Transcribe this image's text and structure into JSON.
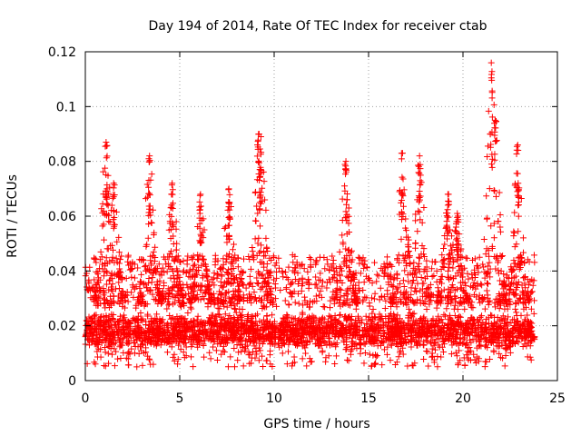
{
  "chart_data": {
    "type": "scatter",
    "title": "Day 194 of 2014, Rate Of TEC Index for receiver ctab",
    "xlabel": "GPS time / hours",
    "ylabel": "ROTI / TECUs",
    "xlim": [
      0,
      25
    ],
    "ylim": [
      0,
      0.12
    ],
    "xticks": [
      0,
      5,
      10,
      15,
      20,
      25
    ],
    "xtick_labels": [
      "0",
      "5",
      "10",
      "15",
      "20",
      "25"
    ],
    "yticks": [
      0,
      0.02,
      0.04,
      0.06,
      0.08,
      0.1,
      0.12
    ],
    "ytick_labels": [
      "0",
      "0.02",
      "0.04",
      "0.06",
      "0.08",
      "0.1",
      "0.12"
    ],
    "grid": true,
    "marker": "plus",
    "series_color": "#ff0000",
    "x_range": [
      0,
      23.8
    ],
    "baseline_band": [
      0.008,
      0.028
    ],
    "notable_peaks": [
      {
        "x": 1.1,
        "y": 0.087
      },
      {
        "x": 1.5,
        "y": 0.072
      },
      {
        "x": 3.4,
        "y": 0.082
      },
      {
        "x": 4.6,
        "y": 0.072
      },
      {
        "x": 6.1,
        "y": 0.068
      },
      {
        "x": 7.6,
        "y": 0.07
      },
      {
        "x": 9.2,
        "y": 0.09
      },
      {
        "x": 9.3,
        "y": 0.089
      },
      {
        "x": 13.8,
        "y": 0.08
      },
      {
        "x": 16.8,
        "y": 0.083
      },
      {
        "x": 17.7,
        "y": 0.082
      },
      {
        "x": 19.2,
        "y": 0.068
      },
      {
        "x": 19.7,
        "y": 0.061
      },
      {
        "x": 21.5,
        "y": 0.116
      },
      {
        "x": 21.7,
        "y": 0.095
      },
      {
        "x": 22.9,
        "y": 0.086
      }
    ]
  }
}
